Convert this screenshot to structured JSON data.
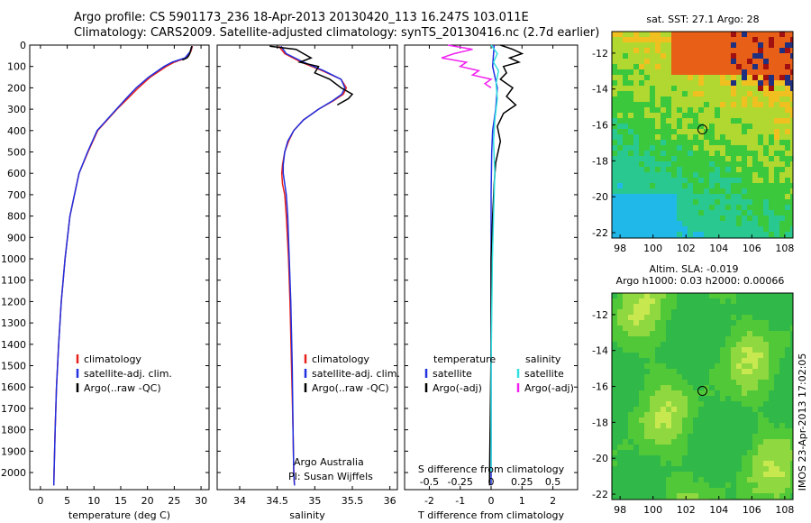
{
  "header": {
    "line1": "Argo profile: CS 5901173_236 18-Apr-2013 20130420_113 16.247S 103.011E",
    "line2": "Climatology: CARS2009. Satellite-adjusted climatology: synTS_20130416.nc (2.7d earlier)"
  },
  "colors": {
    "climatology": "#e8201c",
    "satellite_adj": "#2030e0",
    "argo": "#000000",
    "salinity_sat": "#30e0e0",
    "salinity_argo": "#f020f0"
  },
  "depth_axis": {
    "ticks": [
      0,
      100,
      200,
      300,
      400,
      500,
      600,
      700,
      800,
      900,
      1000,
      1100,
      1200,
      1300,
      1400,
      1500,
      1600,
      1700,
      1800,
      1900,
      2000
    ]
  },
  "chart_data": [
    {
      "id": "temperature",
      "type": "line",
      "xlabel": "temperature (deg C)",
      "xlim": [
        -2,
        31.5
      ],
      "xticks": [
        0,
        5,
        10,
        15,
        20,
        25,
        30
      ],
      "ylim": [
        0,
        2080
      ],
      "legend": [
        "climatology",
        "satellite-adj. clim.",
        "Argo(..raw -QC)"
      ],
      "series": [
        {
          "name": "climatology",
          "color": "#e8201c",
          "depth": [
            5,
            30,
            60,
            80,
            100,
            150,
            200,
            250,
            300,
            400,
            500,
            600,
            800,
            1000,
            1200,
            1400,
            1600,
            1800,
            2000,
            2060
          ],
          "values": [
            28.4,
            28.1,
            27.2,
            25.0,
            23.5,
            20.5,
            18.3,
            16.3,
            14.3,
            10.7,
            8.9,
            7.2,
            5.5,
            4.6,
            3.9,
            3.4,
            3.0,
            2.75,
            2.55,
            2.5
          ]
        },
        {
          "name": "satellite-adj. clim.",
          "color": "#2030e0",
          "depth": [
            5,
            30,
            60,
            80,
            100,
            150,
            200,
            250,
            300,
            400,
            500,
            600,
            800,
            1000,
            1200,
            1400,
            1600,
            1800,
            2000,
            2060
          ],
          "values": [
            28.3,
            28.0,
            27.0,
            24.6,
            23.1,
            20.2,
            17.9,
            16.0,
            14.2,
            10.6,
            8.8,
            7.2,
            5.5,
            4.6,
            3.9,
            3.4,
            3.0,
            2.75,
            2.55,
            2.5
          ]
        },
        {
          "name": "Argo(..raw -QC)",
          "color": "#000000",
          "depth": [
            5,
            10,
            20,
            30,
            40,
            50,
            60,
            70
          ],
          "values": [
            28.3,
            28.2,
            28.1,
            28.0,
            27.9,
            27.7,
            27.4,
            26.5
          ]
        }
      ]
    },
    {
      "id": "salinity",
      "type": "line",
      "xlabel": "salinity",
      "xlim": [
        33.7,
        36.1
      ],
      "xticks": [
        34,
        34.5,
        35,
        35.5,
        36
      ],
      "ylim": [
        0,
        2080
      ],
      "legend": [
        "climatology",
        "satellite-adj. clim.",
        "Argo(..raw -QC)"
      ],
      "annotation": [
        "Argo Australia",
        "PI: Susan Wijffels"
      ],
      "series": [
        {
          "name": "climatology",
          "color": "#e8201c",
          "depth": [
            5,
            40,
            80,
            120,
            160,
            200,
            230,
            260,
            300,
            350,
            400,
            450,
            500,
            560,
            600,
            650,
            700,
            800,
            1000,
            1200,
            1500,
            1800,
            2000,
            2060
          ],
          "values": [
            34.52,
            34.6,
            34.82,
            35.1,
            35.35,
            35.42,
            35.38,
            35.25,
            35.05,
            34.85,
            34.72,
            34.65,
            34.6,
            34.57,
            34.56,
            34.57,
            34.6,
            34.62,
            34.65,
            34.67,
            34.69,
            34.71,
            34.72,
            34.73
          ]
        },
        {
          "name": "satellite-adj. clim.",
          "color": "#2030e0",
          "depth": [
            5,
            40,
            80,
            120,
            160,
            200,
            230,
            260,
            300,
            350,
            400,
            450,
            500,
            560,
            600,
            650,
            700,
            800,
            1000,
            1200,
            1500,
            1800,
            2000,
            2060
          ],
          "values": [
            34.55,
            34.62,
            34.85,
            35.12,
            35.35,
            35.4,
            35.36,
            35.24,
            35.05,
            34.85,
            34.72,
            34.64,
            34.6,
            34.58,
            34.58,
            34.6,
            34.62,
            34.64,
            34.66,
            34.68,
            34.7,
            34.71,
            34.72,
            34.73
          ]
        },
        {
          "name": "Argo(..raw -QC)",
          "color": "#000000",
          "depth": [
            5,
            20,
            40,
            60,
            80,
            100,
            130,
            160,
            200,
            230,
            250,
            280
          ],
          "values": [
            34.4,
            34.75,
            34.85,
            34.95,
            34.8,
            35.05,
            35.0,
            35.2,
            35.35,
            35.5,
            35.45,
            35.3
          ]
        }
      ]
    },
    {
      "id": "difference",
      "type": "line",
      "xlabel": "T difference from climatology",
      "xlabel_top": "S difference from climatology",
      "xlim": [
        -2.8,
        2.8
      ],
      "xticks": [
        -2,
        -1,
        0,
        1,
        2
      ],
      "xlim_top": [
        -0.7,
        0.7
      ],
      "xticks_top": [
        -0.5,
        -0.25,
        0,
        0.25,
        0.5
      ],
      "xticklabels_top": [
        "-0.5",
        "-0.25",
        "0",
        "0.25",
        "0.5"
      ],
      "ylim": [
        0,
        2080
      ],
      "legend_headers": [
        "temperature",
        "salinity"
      ],
      "legend": [
        "satellite",
        "Argo(-adj)",
        "satellite",
        "Argo(-adj)"
      ],
      "series": [
        {
          "name": "T satellite",
          "color": "#2030e0",
          "axis": "T",
          "depth": [
            0,
            100,
            200,
            300,
            400,
            500,
            700,
            1000,
            1500,
            2000,
            2060
          ],
          "values": [
            0.1,
            0.05,
            0.2,
            0.15,
            0.05,
            0.02,
            0.0,
            0.0,
            0.0,
            0.0,
            0.0
          ]
        },
        {
          "name": "T Argo(-adj)",
          "color": "#000000",
          "axis": "T",
          "depth": [
            0,
            20,
            40,
            60,
            80,
            100,
            130,
            160,
            200,
            240,
            280,
            320,
            380,
            450,
            550,
            650,
            800,
            1000,
            1400,
            2000,
            2060
          ],
          "values": [
            0.3,
            0.7,
            1.0,
            0.6,
            0.9,
            0.4,
            0.5,
            0.3,
            0.7,
            0.5,
            0.8,
            0.4,
            0.2,
            0.3,
            0.15,
            0.1,
            0.05,
            0.0,
            0.0,
            -0.05,
            -0.05
          ]
        },
        {
          "name": "S satellite",
          "color": "#30e0e0",
          "axis": "S",
          "depth": [
            0,
            40,
            80,
            120,
            180,
            250,
            350,
            450,
            600,
            800,
            1000,
            1500,
            2000
          ],
          "values": [
            0.0,
            0.05,
            0.02,
            0.06,
            0.04,
            0.05,
            0.03,
            0.02,
            0.03,
            0.02,
            0.01,
            0.0,
            0.0
          ]
        },
        {
          "name": "S Argo(-adj)",
          "color": "#f020f0",
          "axis": "S",
          "depth": [
            0,
            20,
            40,
            60,
            80,
            100,
            120,
            140,
            160,
            180,
            200
          ],
          "values": [
            -0.35,
            -0.15,
            -0.3,
            -0.4,
            -0.2,
            -0.25,
            -0.1,
            -0.15,
            0.0,
            -0.05,
            0.0
          ]
        }
      ]
    }
  ],
  "maps": [
    {
      "id": "sst_map",
      "title": "sat. SST: 27.1  Argo: 28",
      "xticks": [
        98,
        100,
        102,
        104,
        106,
        108
      ],
      "yticks": [
        -12,
        -14,
        -16,
        -18,
        -20,
        -22
      ],
      "xlim": [
        97.5,
        108.5
      ],
      "ylim": [
        -22.3,
        -10.8
      ],
      "argo_marker": [
        103.0,
        -16.25
      ]
    },
    {
      "id": "sla_map",
      "title": "Altim. SLA: -0.019",
      "subtitle": "Argo h1000: 0.03 h2000: 0.00066",
      "xticks": [
        98,
        100,
        102,
        104,
        106,
        108
      ],
      "yticks": [
        -12,
        -14,
        -16,
        -18,
        -20,
        -22
      ],
      "xlim": [
        97.5,
        108.5
      ],
      "ylim": [
        -22.3,
        -10.8
      ],
      "argo_marker": [
        103.0,
        -16.25
      ]
    }
  ],
  "footer": {
    "stamp": "IMOS 23-Apr-2013 17:02:05"
  }
}
